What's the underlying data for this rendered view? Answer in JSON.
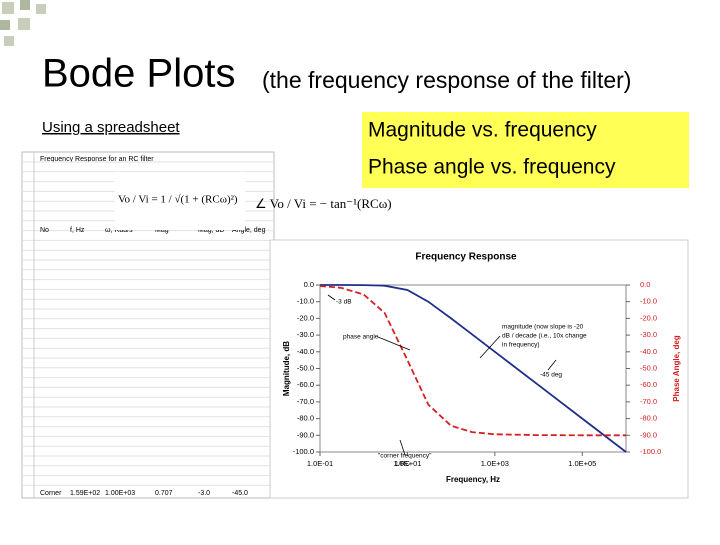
{
  "slide": {
    "title": "Bode Plots",
    "subtitle": "(the frequency response of the filter)",
    "link": "Using a spreadsheet",
    "callouts": [
      "Magnitude vs. frequency",
      "Phase angle vs. frequency"
    ],
    "formulas": {
      "magnitude": "Vo / Vi = 1 / √(1 + (RCω)²)",
      "phase": "∠ Vo / Vi = − tan⁻¹(RCω)"
    },
    "spreadsheet": {
      "title": "Frequency Response for an RC filter",
      "headers": [
        "No",
        "f, Hz",
        "ω, Rad/s",
        "Mag",
        "Mag, dB",
        "Angle, deg"
      ],
      "corner_row": [
        "Corner",
        "1.59E+02",
        "1.00E+03",
        "0.707",
        "-3.0",
        "-45.0"
      ]
    }
  },
  "chart_data": {
    "type": "line",
    "title": "Frequency Response",
    "xlabel": "Frequency, Hz",
    "ylabel": "Magnitude, dB",
    "y2label": "Phase Angle, deg",
    "log_x": true,
    "x": [
      0.1,
      0.3,
      1,
      3,
      10,
      30,
      100,
      300,
      1000,
      10000,
      100000,
      1000000
    ],
    "series": [
      {
        "name": "magnitude",
        "color": "#1f2f8a",
        "values": [
          0,
          0,
          -0.04,
          -0.4,
          -3,
          -10,
          -20,
          -29.5,
          -40,
          -60,
          -80,
          -100
        ]
      },
      {
        "name": "phase angle",
        "color": "#d62020",
        "axis": "y2",
        "values": [
          -0.6,
          -1.7,
          -5.7,
          -16.7,
          -45,
          -71.6,
          -84.3,
          -88.1,
          -89.4,
          -89.9,
          -90,
          -90
        ]
      }
    ],
    "xlim": [
      0.1,
      1000000
    ],
    "xticks": [
      {
        "value": 0.1,
        "label": "1.0E-01"
      },
      {
        "value": 10,
        "label": "1.0E+01"
      },
      {
        "value": 1000,
        "label": "1.0E+03"
      },
      {
        "value": 100000,
        "label": "1.0E+05"
      }
    ],
    "ylim": [
      -100,
      0
    ],
    "yticks": [
      {
        "value": 0,
        "label": "0.0"
      },
      {
        "value": -10,
        "label": "-10.0"
      },
      {
        "value": -20,
        "label": "-20.0"
      },
      {
        "value": -30,
        "label": "-30.0"
      },
      {
        "value": -40,
        "label": "-40.0"
      },
      {
        "value": -50,
        "label": "-50.0"
      },
      {
        "value": -60,
        "label": "-60.0"
      },
      {
        "value": -70,
        "label": "-70.0"
      },
      {
        "value": -80,
        "label": "-80.0"
      },
      {
        "value": -90,
        "label": "-90.0"
      },
      {
        "value": -100,
        "label": "-100.0"
      }
    ],
    "y2lim": [
      -100,
      0
    ],
    "y2ticks": [
      {
        "value": 0,
        "label": "0.0"
      },
      {
        "value": -10,
        "label": "-10.0"
      },
      {
        "value": -20,
        "label": "-20.0"
      },
      {
        "value": -30,
        "label": "-30.0"
      },
      {
        "value": -40,
        "label": "-40.0"
      },
      {
        "value": -50,
        "label": "-50.0"
      },
      {
        "value": -60,
        "label": "-60.0"
      },
      {
        "value": -70,
        "label": "-70.0"
      },
      {
        "value": -80,
        "label": "-80.0"
      },
      {
        "value": -90,
        "label": "-90.0"
      },
      {
        "value": -100,
        "label": "-100.0"
      }
    ],
    "annotations": [
      "-3 dB",
      "phase angle",
      "magnitude (now slope is -20",
      "dB / decade (i.e., 10x change",
      "in frequency)",
      "-45 deg",
      "\"corner frequency\"",
      "1/RC"
    ]
  }
}
